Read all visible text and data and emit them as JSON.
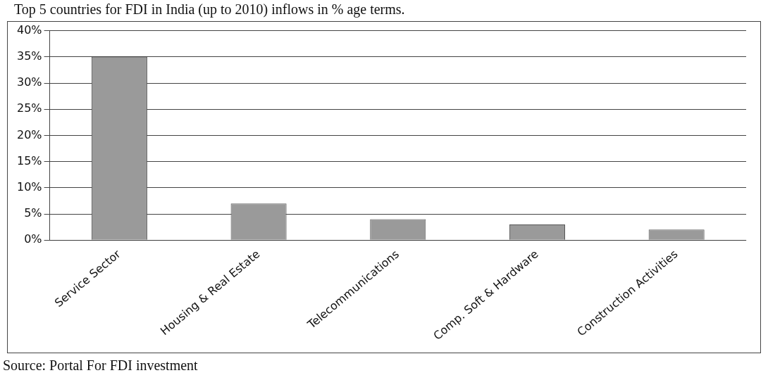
{
  "chart_data": {
    "type": "bar",
    "title": "Top 5 countries for FDI in India (up to 2010) inflows in % age terms.",
    "categories": [
      "Service Sector",
      "Housing & Real Estate",
      "Telecommunications",
      "Comp. Soft & Hardware",
      "Construction Activities"
    ],
    "values": [
      35,
      7,
      4,
      3,
      2
    ],
    "color": "#9a9a9a",
    "ylim": [
      0,
      40
    ],
    "yticks": [
      {
        "value": 0,
        "label": "0%"
      },
      {
        "value": 5,
        "label": "5%"
      },
      {
        "value": 10,
        "label": "10%"
      },
      {
        "value": 15,
        "label": "15%"
      },
      {
        "value": 20,
        "label": "20%"
      },
      {
        "value": 25,
        "label": "25%"
      },
      {
        "value": 30,
        "label": "30%"
      },
      {
        "value": 35,
        "label": "35%"
      },
      {
        "value": 40,
        "label": "40%"
      }
    ],
    "grid": "y",
    "legend": false,
    "annotations": [
      "Source: Portal For FDI investment"
    ]
  }
}
